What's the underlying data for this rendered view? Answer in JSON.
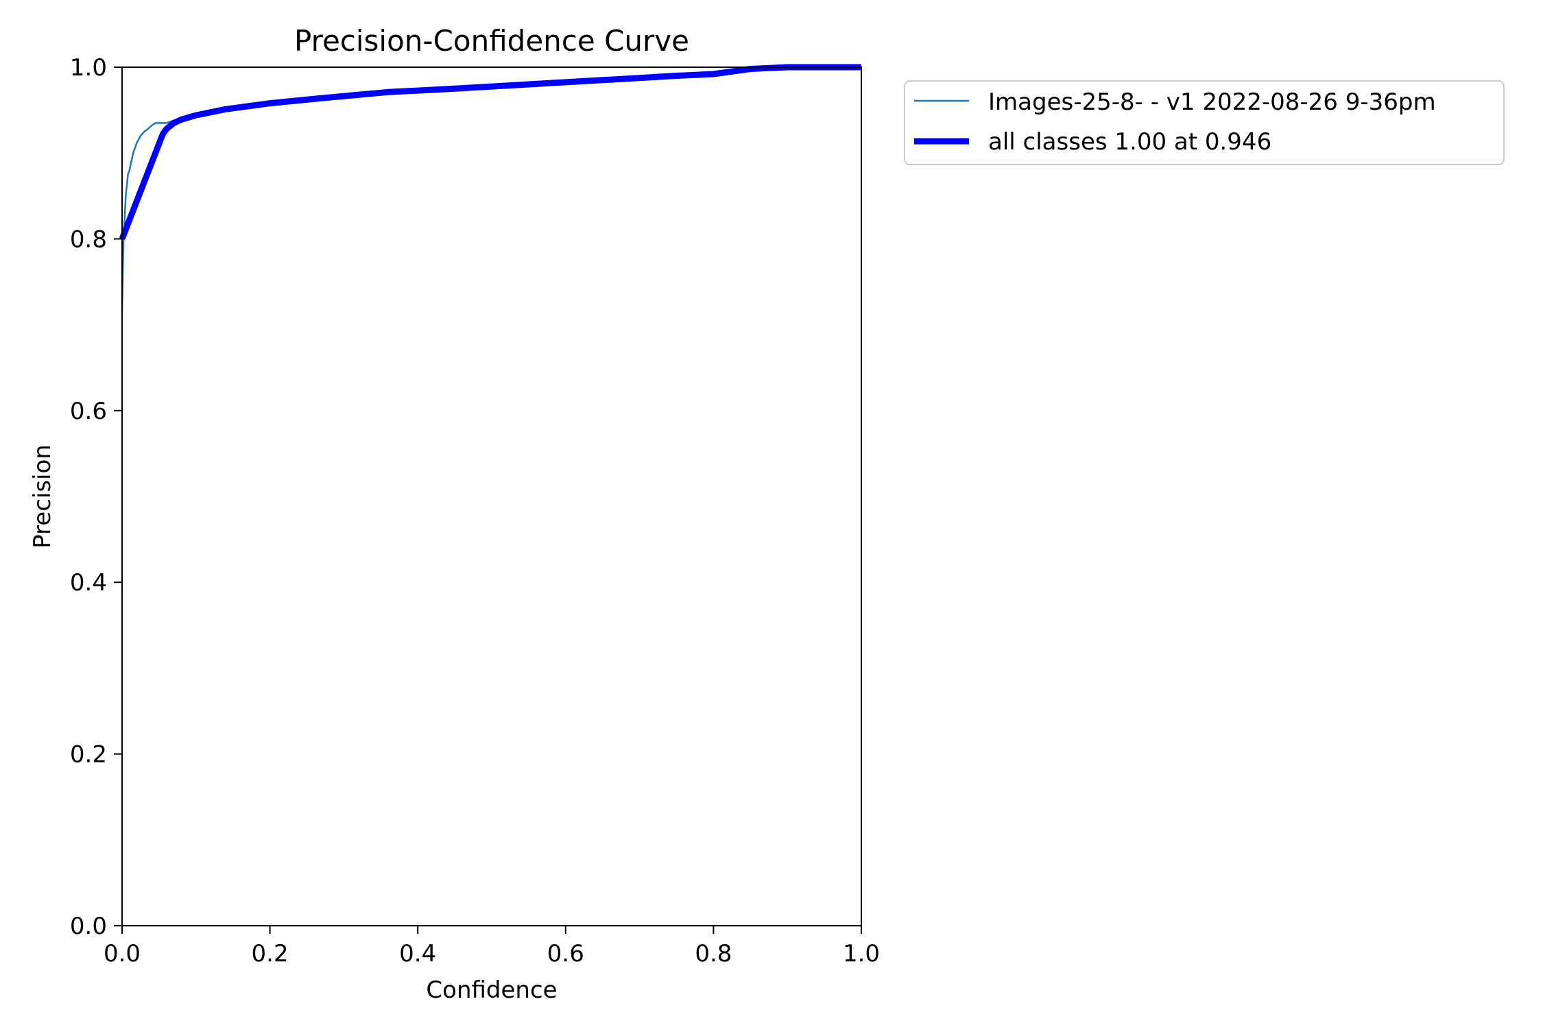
{
  "chart_data": {
    "type": "line",
    "title": "Precision-Confidence Curve",
    "xlabel": "Confidence",
    "ylabel": "Precision",
    "xlim": [
      0,
      1
    ],
    "ylim": [
      0,
      1
    ],
    "x_ticks": [
      "0.0",
      "0.2",
      "0.4",
      "0.6",
      "0.8",
      "1.0"
    ],
    "y_ticks": [
      "0.0",
      "0.2",
      "0.4",
      "0.6",
      "0.8",
      "1.0"
    ],
    "grid": false,
    "legend_position": "outside-upper-right",
    "series": [
      {
        "name": "Images-25-8- - v1 2022-08-26 9-36pm",
        "color": "#1f77b4",
        "style": "thin",
        "x": [
          0.0,
          0.002,
          0.005,
          0.008,
          0.01,
          0.015,
          0.02,
          0.025,
          0.03,
          0.035,
          0.04,
          0.045,
          0.05,
          0.055,
          0.06,
          0.07,
          0.08,
          0.1,
          0.14,
          0.2,
          0.27,
          0.36,
          0.45,
          0.55,
          0.65,
          0.75,
          0.8,
          0.85,
          0.9,
          0.95,
          1.0
        ],
        "y": [
          0.715,
          0.8,
          0.85,
          0.875,
          0.88,
          0.9,
          0.912,
          0.92,
          0.925,
          0.928,
          0.932,
          0.935,
          0.935,
          0.935,
          0.935,
          0.938,
          0.941,
          0.945,
          0.951,
          0.958,
          0.964,
          0.971,
          0.975,
          0.98,
          0.985,
          0.99,
          0.992,
          0.998,
          1.0,
          1.0,
          1.0
        ]
      },
      {
        "name": "all classes 1.00 at 0.946",
        "color": "#0000ff",
        "style": "thick",
        "x": [
          0.0,
          0.055,
          0.06,
          0.07,
          0.08,
          0.1,
          0.14,
          0.2,
          0.27,
          0.36,
          0.45,
          0.55,
          0.65,
          0.75,
          0.8,
          0.85,
          0.9,
          0.95,
          1.0
        ],
        "y": [
          0.8,
          0.922,
          0.928,
          0.935,
          0.939,
          0.944,
          0.951,
          0.958,
          0.964,
          0.971,
          0.975,
          0.98,
          0.985,
          0.99,
          0.992,
          0.998,
          1.0,
          1.0,
          1.0
        ]
      }
    ]
  }
}
